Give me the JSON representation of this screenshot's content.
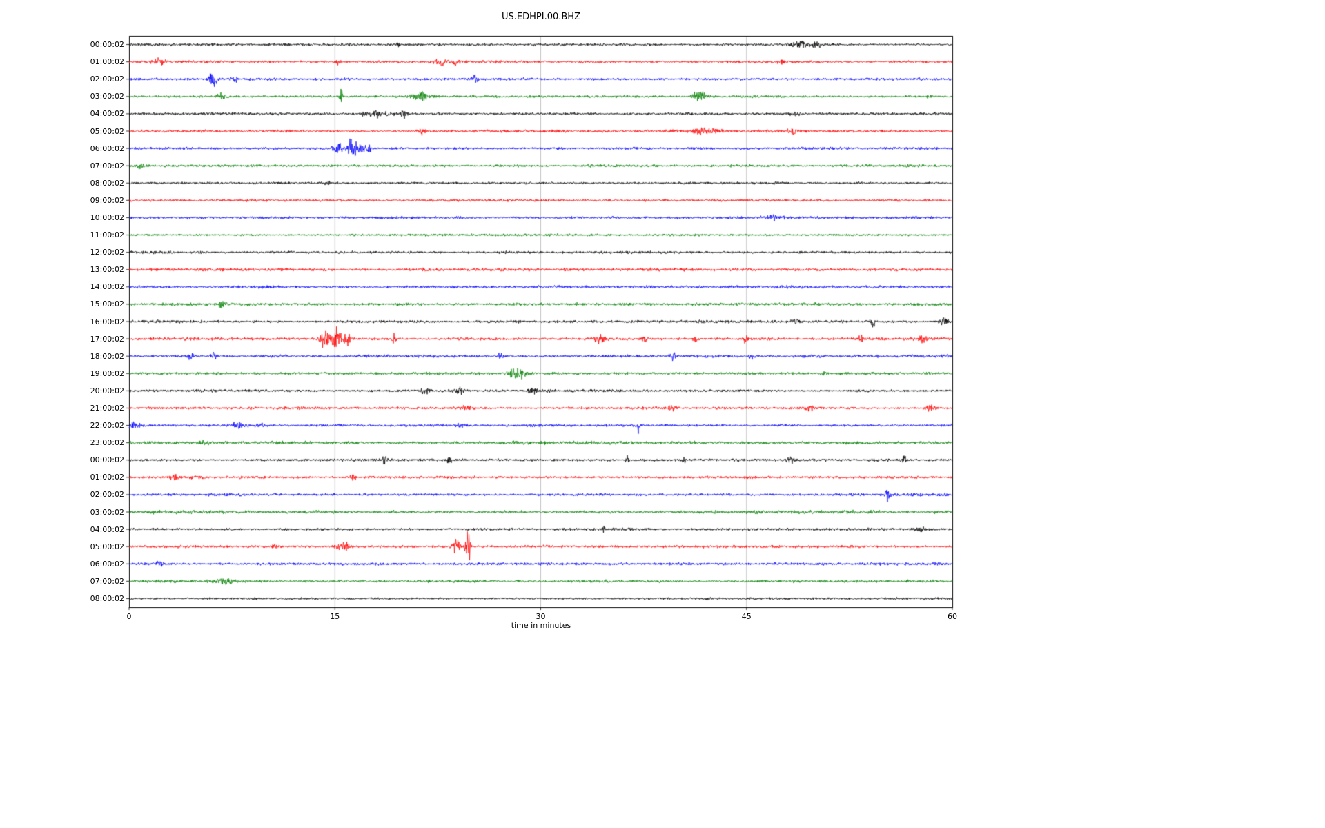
{
  "chart_data": {
    "type": "line",
    "subtype": "helicorder-dayplot",
    "title": "US.EDHPI.00.BHZ",
    "xlabel": "time in minutes",
    "xlim": [
      0,
      60
    ],
    "x_ticks": [
      0,
      15,
      30,
      45,
      60
    ],
    "grid_x": [
      15,
      30,
      45
    ],
    "grid_on": true,
    "minutes_per_row": 60,
    "trace_color_cycle": [
      "#000000",
      "#ff0000",
      "#0000ff",
      "#008000"
    ],
    "rows": [
      {
        "label": "00:00:02",
        "color": "#000000",
        "noise": 0.85,
        "events": [
          {
            "t": 19.6,
            "a": 2.0,
            "d": 0.25
          },
          {
            "t": 48.8,
            "a": 3.0,
            "d": 1.0
          },
          {
            "t": 50.1,
            "a": 2.2,
            "d": 0.5
          }
        ]
      },
      {
        "label": "01:00:02",
        "color": "#ff0000",
        "noise": 0.9,
        "events": [
          {
            "t": 2.2,
            "a": 2.6,
            "d": 0.5
          },
          {
            "t": 15.2,
            "a": 2.2,
            "d": 0.3
          },
          {
            "t": 22.7,
            "a": 3.5,
            "d": 0.7
          },
          {
            "t": 23.8,
            "a": 2.5,
            "d": 0.4
          },
          {
            "t": 47.5,
            "a": 1.6,
            "d": 0.3
          }
        ]
      },
      {
        "label": "02:00:02",
        "color": "#0000ff",
        "noise": 0.9,
        "events": [
          {
            "t": 6.1,
            "a": 4.5,
            "d": 0.45
          },
          {
            "t": 7.7,
            "a": 2.5,
            "d": 0.3
          },
          {
            "t": 25.2,
            "a": 3.2,
            "d": 0.35
          },
          {
            "t": 57.6,
            "a": 1.5,
            "d": 0.3
          }
        ]
      },
      {
        "label": "03:00:02",
        "color": "#008000",
        "noise": 0.9,
        "events": [
          {
            "t": 6.8,
            "a": 2.0,
            "d": 0.6
          },
          {
            "t": 15.45,
            "a": 16.0,
            "d": 0.1
          },
          {
            "t": 21.3,
            "a": 3.5,
            "d": 1.0
          },
          {
            "t": 41.6,
            "a": 4.5,
            "d": 0.8
          },
          {
            "t": 58.2,
            "a": 1.8,
            "d": 0.3
          }
        ]
      },
      {
        "label": "04:00:02",
        "color": "#000000",
        "noise": 0.9,
        "events": [
          {
            "t": 18.3,
            "a": 2.2,
            "d": 1.8
          },
          {
            "t": 20.0,
            "a": 3.2,
            "d": 0.4
          },
          {
            "t": 48.5,
            "a": 1.5,
            "d": 0.5
          }
        ]
      },
      {
        "label": "05:00:02",
        "color": "#ff0000",
        "noise": 0.9,
        "events": [
          {
            "t": 21.3,
            "a": 3.2,
            "d": 0.4
          },
          {
            "t": 42.0,
            "a": 2.2,
            "d": 1.2
          },
          {
            "t": 48.3,
            "a": 2.2,
            "d": 0.5
          }
        ]
      },
      {
        "label": "06:00:02",
        "color": "#0000ff",
        "noise": 0.95,
        "events": [
          {
            "t": 15.3,
            "a": 3.5,
            "d": 0.6
          },
          {
            "t": 16.15,
            "a": 12.0,
            "d": 0.2
          },
          {
            "t": 16.7,
            "a": 6.0,
            "d": 0.5
          },
          {
            "t": 17.4,
            "a": 3.0,
            "d": 0.4
          }
        ]
      },
      {
        "label": "07:00:02",
        "color": "#008000",
        "noise": 0.85,
        "events": [
          {
            "t": 0.8,
            "a": 1.6,
            "d": 0.4
          },
          {
            "t": 33.5,
            "a": 1.3,
            "d": 0.5
          }
        ]
      },
      {
        "label": "08:00:02",
        "color": "#000000",
        "noise": 0.8,
        "events": [
          {
            "t": 14.5,
            "a": 1.4,
            "d": 0.4
          }
        ]
      },
      {
        "label": "09:00:02",
        "color": "#ff0000",
        "noise": 0.85,
        "events": []
      },
      {
        "label": "10:00:02",
        "color": "#0000ff",
        "noise": 0.9,
        "events": [
          {
            "t": 47.0,
            "a": 1.4,
            "d": 0.8
          }
        ]
      },
      {
        "label": "11:00:02",
        "color": "#008000",
        "noise": 0.85,
        "events": []
      },
      {
        "label": "12:00:02",
        "color": "#000000",
        "noise": 0.85,
        "events": [
          {
            "t": 27.5,
            "a": 1.4,
            "d": 0.4
          }
        ]
      },
      {
        "label": "13:00:02",
        "color": "#ff0000",
        "noise": 1.05,
        "events": []
      },
      {
        "label": "14:00:02",
        "color": "#0000ff",
        "noise": 0.95,
        "events": []
      },
      {
        "label": "15:00:02",
        "color": "#008000",
        "noise": 1.0,
        "events": [
          {
            "t": 6.8,
            "a": 1.6,
            "d": 0.5
          }
        ]
      },
      {
        "label": "16:00:02",
        "color": "#000000",
        "noise": 0.95,
        "events": [
          {
            "t": 48.6,
            "a": 1.8,
            "d": 0.3
          },
          {
            "t": 54.2,
            "a": 4.0,
            "d": 0.25
          },
          {
            "t": 59.4,
            "a": 4.5,
            "d": 0.5
          }
        ]
      },
      {
        "label": "17:00:02",
        "color": "#ff0000",
        "noise": 0.95,
        "events": [
          {
            "t": 14.3,
            "a": 8.0,
            "d": 0.5
          },
          {
            "t": 15.1,
            "a": 10.0,
            "d": 0.5
          },
          {
            "t": 15.9,
            "a": 5.0,
            "d": 0.4
          },
          {
            "t": 19.3,
            "a": 4.5,
            "d": 0.2
          },
          {
            "t": 34.3,
            "a": 3.0,
            "d": 0.6
          },
          {
            "t": 37.6,
            "a": 2.2,
            "d": 0.3
          },
          {
            "t": 41.3,
            "a": 2.6,
            "d": 0.3
          },
          {
            "t": 44.9,
            "a": 2.6,
            "d": 0.25
          },
          {
            "t": 53.3,
            "a": 2.2,
            "d": 0.3
          },
          {
            "t": 57.8,
            "a": 1.8,
            "d": 0.3
          }
        ]
      },
      {
        "label": "18:00:02",
        "color": "#0000ff",
        "noise": 0.95,
        "events": [
          {
            "t": 4.4,
            "a": 3.5,
            "d": 0.5
          },
          {
            "t": 6.2,
            "a": 2.6,
            "d": 0.35
          },
          {
            "t": 27.0,
            "a": 2.2,
            "d": 0.35
          },
          {
            "t": 39.6,
            "a": 2.2,
            "d": 0.35
          },
          {
            "t": 45.4,
            "a": 2.6,
            "d": 0.4
          }
        ]
      },
      {
        "label": "19:00:02",
        "color": "#008000",
        "noise": 0.95,
        "events": [
          {
            "t": 28.3,
            "a": 4.5,
            "d": 0.9
          },
          {
            "t": 50.6,
            "a": 3.5,
            "d": 0.2
          }
        ]
      },
      {
        "label": "20:00:02",
        "color": "#000000",
        "noise": 0.9,
        "events": [
          {
            "t": 21.6,
            "a": 2.6,
            "d": 0.4
          },
          {
            "t": 24.1,
            "a": 2.6,
            "d": 0.5
          },
          {
            "t": 29.4,
            "a": 3.0,
            "d": 0.4
          }
        ]
      },
      {
        "label": "21:00:02",
        "color": "#ff0000",
        "noise": 0.9,
        "events": [
          {
            "t": 24.7,
            "a": 2.2,
            "d": 0.7
          },
          {
            "t": 39.6,
            "a": 2.2,
            "d": 0.4
          },
          {
            "t": 49.6,
            "a": 3.0,
            "d": 0.4
          },
          {
            "t": 58.4,
            "a": 3.5,
            "d": 0.5
          }
        ]
      },
      {
        "label": "22:00:02",
        "color": "#0000ff",
        "noise": 0.95,
        "events": [
          {
            "t": 0.5,
            "a": 3.5,
            "d": 0.6
          },
          {
            "t": 8.0,
            "a": 2.6,
            "d": 0.6
          },
          {
            "t": 9.6,
            "a": 2.2,
            "d": 0.35
          },
          {
            "t": 24.2,
            "a": 1.8,
            "d": 0.4
          },
          {
            "t": 37.1,
            "a": 5.0,
            "d": 0.12
          }
        ]
      },
      {
        "label": "23:00:02",
        "color": "#008000",
        "noise": 1.05,
        "events": [
          {
            "t": 5.5,
            "a": 1.6,
            "d": 0.5
          }
        ]
      },
      {
        "label": "00:00:02",
        "color": "#000000",
        "noise": 0.85,
        "events": [
          {
            "t": 18.6,
            "a": 2.2,
            "d": 0.3
          },
          {
            "t": 23.3,
            "a": 2.6,
            "d": 0.25
          },
          {
            "t": 36.3,
            "a": 3.5,
            "d": 0.15
          },
          {
            "t": 40.4,
            "a": 2.6,
            "d": 0.25
          },
          {
            "t": 48.3,
            "a": 2.6,
            "d": 0.4
          },
          {
            "t": 56.5,
            "a": 3.0,
            "d": 0.25
          }
        ]
      },
      {
        "label": "01:00:02",
        "color": "#ff0000",
        "noise": 0.9,
        "events": [
          {
            "t": 3.3,
            "a": 1.8,
            "d": 0.5
          },
          {
            "t": 16.3,
            "a": 3.5,
            "d": 0.4
          }
        ]
      },
      {
        "label": "02:00:02",
        "color": "#0000ff",
        "noise": 0.9,
        "events": [
          {
            "t": 55.3,
            "a": 6.5,
            "d": 0.18
          }
        ]
      },
      {
        "label": "03:00:02",
        "color": "#008000",
        "noise": 1.05,
        "events": []
      },
      {
        "label": "04:00:02",
        "color": "#000000",
        "noise": 0.9,
        "events": [
          {
            "t": 34.6,
            "a": 8.0,
            "d": 0.1
          },
          {
            "t": 57.6,
            "a": 2.2,
            "d": 0.7
          }
        ]
      },
      {
        "label": "05:00:02",
        "color": "#ff0000",
        "noise": 0.9,
        "events": [
          {
            "t": 10.6,
            "a": 1.8,
            "d": 0.3
          },
          {
            "t": 15.6,
            "a": 4.5,
            "d": 0.6
          },
          {
            "t": 23.8,
            "a": 6.0,
            "d": 0.4
          },
          {
            "t": 24.7,
            "a": 12.0,
            "d": 0.25
          }
        ]
      },
      {
        "label": "06:00:02",
        "color": "#0000ff",
        "noise": 0.95,
        "events": [
          {
            "t": 2.2,
            "a": 1.8,
            "d": 0.35
          }
        ]
      },
      {
        "label": "07:00:02",
        "color": "#008000",
        "noise": 0.95,
        "events": [
          {
            "t": 7.0,
            "a": 1.6,
            "d": 0.6
          }
        ]
      },
      {
        "label": "08:00:02",
        "color": "#000000",
        "noise": 0.75,
        "events": []
      }
    ]
  }
}
